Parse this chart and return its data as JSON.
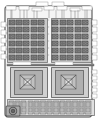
{
  "bg": "#ffffff",
  "body_fc": "#f5f5f5",
  "body_ec": "#555555",
  "grid_fc": "#c8c8c8",
  "grid_ec": "#444444",
  "cell_fc": "#888888",
  "cell_ec": "#222222",
  "relay_fc": "#d0d0d0",
  "relay_ec": "#444444",
  "relay_inner_fc": "#b0b0b0",
  "relay_inner_ec": "#333333",
  "relay_center_fc": "#e0e0e0",
  "fuse_fc": "#cccccc",
  "fuse_ec": "#444444",
  "label_fc": "#ffffff",
  "label_ec": "#888888",
  "line_color": "#555555",
  "text_color": "#222222",
  "connector_fc": "#aaaaaa",
  "connector_ec": "#444444",
  "fig_width": 0.98,
  "fig_height": 1.2,
  "dpi": 100
}
